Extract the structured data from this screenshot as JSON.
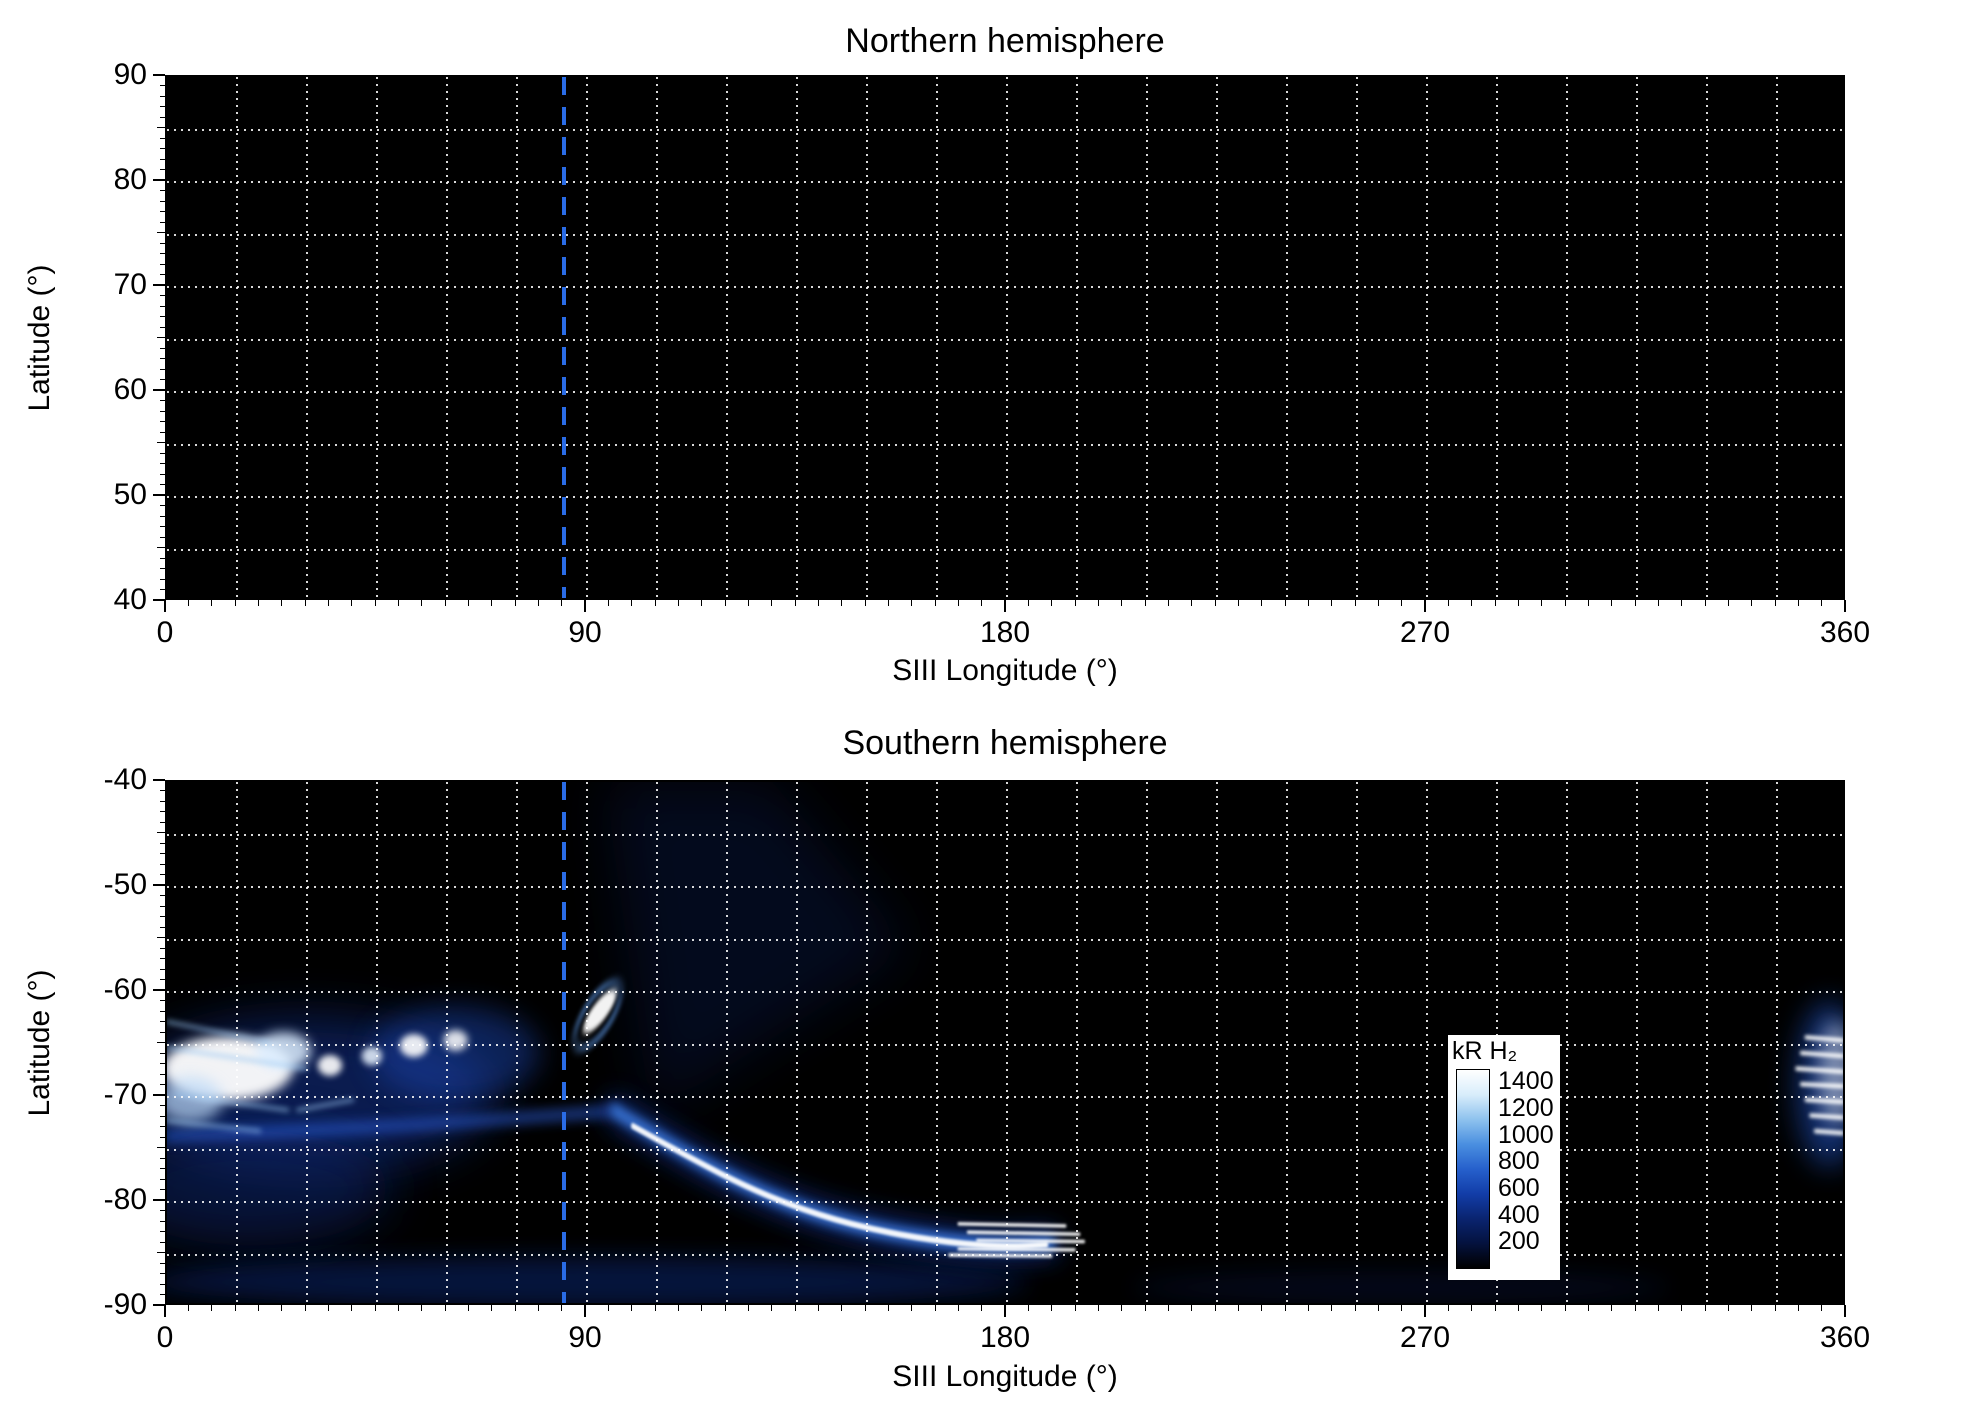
{
  "chart_data": [
    {
      "type": "heatmap",
      "title": "Northern hemisphere",
      "xlabel": "SIII Longitude (°)",
      "ylabel": "Latitude (°)",
      "xlim": [
        0,
        360
      ],
      "ylim": [
        40,
        90
      ],
      "xticks": [
        0,
        90,
        180,
        270,
        360
      ],
      "yticks": [
        90,
        80,
        70,
        60,
        50,
        40
      ],
      "minor_ticks": {
        "x_minor_step": 5,
        "y_minor_step": 1,
        "y_medium_step": 5
      },
      "grid": {
        "x_step": 15,
        "y_step": 5,
        "style": "dotted",
        "color": "#ffffff"
      },
      "background": "#000000",
      "reference_line": {
        "orientation": "vertical",
        "x": 85,
        "style": "dashed",
        "color": "#2a6ce6",
        "name": "CML marker"
      },
      "emission_features": [],
      "note": "no auroral emission visible; entirely black panel with dotted grid"
    },
    {
      "type": "heatmap",
      "title": "Southern hemisphere",
      "xlabel": "SIII Longitude (°)",
      "ylabel": "Latitude (°)",
      "xlim": [
        0,
        360
      ],
      "ylim": [
        -90,
        -40
      ],
      "xticks": [
        0,
        90,
        180,
        270,
        360
      ],
      "yticks": [
        -40,
        -50,
        -60,
        -70,
        -80,
        -90
      ],
      "minor_ticks": {
        "x_minor_step": 5,
        "y_minor_step": 1,
        "y_medium_step": 5
      },
      "grid": {
        "x_step": 15,
        "y_step": 5,
        "style": "dotted",
        "color": "#ffffff"
      },
      "background": "#000000",
      "reference_line": {
        "orientation": "vertical",
        "x": 85,
        "style": "dashed",
        "color": "#2a6ce6",
        "name": "CML marker"
      },
      "colorbar": {
        "label": "kR H₂",
        "values": [
          1400,
          1200,
          1000,
          800,
          600,
          400,
          200
        ],
        "range": [
          0,
          1500
        ],
        "colors": [
          "#000000",
          "#04123e",
          "#0a2470",
          "#123da8",
          "#2660cc",
          "#4a8fe0",
          "#8ec2ee",
          "#d8edfb",
          "#ffffff"
        ]
      },
      "emission_features": [
        {
          "kind": "ellipse",
          "lon": 30,
          "lat": -70,
          "rlon": 40,
          "rlat": 7.5,
          "fill": "#16379e",
          "opacity": 0.5,
          "blur": 5,
          "desc": "diffuse emission around dawn-side oval"
        },
        {
          "kind": "ellipse",
          "lon": 18,
          "lat": -79,
          "rlon": 30,
          "rlat": 5.5,
          "fill": "#0c2570",
          "opacity": 0.5,
          "blur": 5,
          "desc": "faint polar emission lower left"
        },
        {
          "kind": "ellipse",
          "lon": 62,
          "lat": -66,
          "rlon": 18,
          "rlat": 4.5,
          "fill": "#1c4ab8",
          "opacity": 0.45,
          "blur": 3
        },
        {
          "kind": "ellipse",
          "lon": 90,
          "lat": -88,
          "rlon": 95,
          "rlat": 2.4,
          "fill": "#0d2d85",
          "opacity": 0.45,
          "blur": 2.5,
          "desc": "faint band near -88 latitude"
        },
        {
          "kind": "ellipse",
          "lon": 265,
          "lat": -88.5,
          "rlon": 58,
          "rlat": 1.6,
          "fill": "#0a2266",
          "opacity": 0.25,
          "blur": 2.5
        },
        {
          "kind": "ellipse",
          "lon": 357,
          "lat": -69,
          "rlon": 7,
          "rlat": 8,
          "fill": "#2456cc",
          "opacity": 0.55,
          "blur": 3,
          "desc": "wrap-around of main emission at 360°"
        },
        {
          "kind": "polygon",
          "points": [
            [
              94,
              -40
            ],
            [
              130,
              -40
            ],
            [
              160,
              -56
            ],
            [
              104,
              -72
            ]
          ],
          "fill": "#0d2060",
          "opacity": 0.3,
          "blur": 6,
          "desc": "very faint wedge of background emission"
        },
        {
          "kind": "path",
          "points": [
            [
              0,
              -74
            ],
            [
              45,
              -73.2
            ],
            [
              96,
              -71.6
            ]
          ],
          "stroke": "#2a5ad0",
          "width": 1.3,
          "opacity": 0.55,
          "blur": 1.2,
          "desc": "faint arc segment 0-95°"
        },
        {
          "kind": "path",
          "points": [
            [
              96,
              -71.5
            ],
            [
              108,
              -74.8
            ],
            [
              122,
              -78.3
            ],
            [
              138,
              -81.3
            ],
            [
              152,
              -83
            ],
            [
              166,
              -84
            ],
            [
              178,
              -84.5
            ],
            [
              190,
              -84.3
            ]
          ],
          "stroke": "#16379e",
          "width": 3.2,
          "opacity": 0.6,
          "blur": 2.5,
          "desc": "main arc outer glow"
        },
        {
          "kind": "path",
          "points": [
            [
              96,
              -71.5
            ],
            [
              108,
              -74.8
            ],
            [
              122,
              -78.3
            ],
            [
              138,
              -81.3
            ],
            [
              152,
              -83
            ],
            [
              166,
              -84
            ],
            [
              178,
              -84.5
            ],
            [
              190,
              -84.3
            ]
          ],
          "stroke": "#3a7ae0",
          "width": 1.5,
          "opacity": 0.85,
          "blur": 1,
          "desc": "main arc inner glow"
        },
        {
          "kind": "path",
          "points": [
            [
              100,
              -73
            ],
            [
              112,
              -76
            ],
            [
              126,
              -79.2
            ],
            [
              140,
              -81.6
            ],
            [
              154,
              -83.2
            ],
            [
              168,
              -84.2
            ],
            [
              180,
              -84.6
            ],
            [
              189,
              -84.4
            ]
          ],
          "stroke": "#ffffff",
          "width": 0.6,
          "opacity": 0.95,
          "blur": 0.3,
          "desc": "main auroral arc bright core 100-190°"
        },
        {
          "kind": "ellipse",
          "lon": 13,
          "lat": -67.5,
          "rlon": 14,
          "rlat": 3.1,
          "fill": "#ffffff",
          "opacity": 0.95,
          "blur": 1.2,
          "desc": "bright saturated patch 0-30° at -67°"
        },
        {
          "kind": "ellipse",
          "lon": 25,
          "lat": -65.8,
          "rlon": 6,
          "rlat": 1.8,
          "fill": "#dceeff",
          "opacity": 0.85,
          "blur": 1.2
        },
        {
          "kind": "ellipse",
          "lon": 5,
          "lat": -70.5,
          "rlon": 7,
          "rlat": 2.2,
          "fill": "#bcd9f7",
          "opacity": 0.7,
          "blur": 1.5
        },
        {
          "kind": "ellipse",
          "lon": 35,
          "lat": -67.2,
          "rlon": 2.6,
          "rlat": 1,
          "fill": "#ffffff",
          "opacity": 0.9,
          "blur": 0.7,
          "desc": "bright spot"
        },
        {
          "kind": "ellipse",
          "lon": 44,
          "lat": -66.3,
          "rlon": 2.2,
          "rlat": 0.9,
          "fill": "#eaf4ff",
          "opacity": 0.85,
          "blur": 0.7,
          "desc": "bright spot"
        },
        {
          "kind": "ellipse",
          "lon": 53,
          "lat": -65.3,
          "rlon": 3,
          "rlat": 1.1,
          "fill": "#ffffff",
          "opacity": 0.9,
          "blur": 0.7,
          "desc": "bright spot"
        },
        {
          "kind": "ellipse",
          "lon": 62,
          "lat": -64.8,
          "rlon": 2.6,
          "rlat": 1,
          "fill": "#ffffff",
          "opacity": 0.85,
          "blur": 0.8,
          "desc": "bright spot"
        },
        {
          "kind": "ellipse",
          "lon": 93,
          "lat": -62,
          "rlon": 4,
          "rlat": 1.1,
          "fill": "#ffffff",
          "opacity": 0.95,
          "blur": 0.5,
          "rotate": -28,
          "desc": "isolated bright oval near 93°, -62°"
        },
        {
          "kind": "ring",
          "lon": 92.5,
          "lat": -62.4,
          "rlon": 5.5,
          "rlat": 2,
          "stroke": "#5e9ae8",
          "width": 0.5,
          "opacity": 0.8,
          "blur": 0.7,
          "rotate": -28
        },
        {
          "kind": "streaks",
          "stroke": "#ffffff",
          "width": 0.35,
          "opacity": 0.9,
          "blur": 0.3,
          "desc": "striated end of arc near 180-195°",
          "lines": [
            [
              [
                170,
                -82.4
              ],
              [
                193,
                -82.6
              ]
            ],
            [
              [
                172,
                -83.2
              ],
              [
                196,
                -83.4
              ]
            ],
            [
              [
                174,
                -84
              ],
              [
                197,
                -84.1
              ]
            ],
            [
              [
                170,
                -84.8
              ],
              [
                195,
                -84.9
              ]
            ],
            [
              [
                168,
                -85.4
              ],
              [
                190,
                -85.5
              ]
            ]
          ]
        },
        {
          "kind": "streaks",
          "stroke": "#ffffff",
          "width": 0.45,
          "opacity": 0.9,
          "blur": 0.4,
          "desc": "bright streaks at right edge 350-360°",
          "lines": [
            [
              [
                352,
                -64.5
              ],
              [
                360,
                -64.8
              ]
            ],
            [
              [
                351,
                -66
              ],
              [
                360,
                -66.3
              ]
            ],
            [
              [
                350,
                -67.5
              ],
              [
                360,
                -67.8
              ]
            ],
            [
              [
                351,
                -69
              ],
              [
                360,
                -69.2
              ]
            ],
            [
              [
                352,
                -70.5
              ],
              [
                360,
                -70.7
              ]
            ],
            [
              [
                353,
                -72
              ],
              [
                360,
                -72.2
              ]
            ],
            [
              [
                354,
                -73.5
              ],
              [
                360,
                -73.7
              ]
            ]
          ]
        },
        {
          "kind": "ellipse",
          "lon": 358.5,
          "lat": -68,
          "rlon": 3.5,
          "rlat": 5,
          "fill": "#ffffff",
          "opacity": 0.45,
          "blur": 2
        },
        {
          "kind": "streaks",
          "stroke": "#9cc8f2",
          "width": 0.4,
          "opacity": 0.6,
          "blur": 0.6,
          "desc": "streaky texture in left bright region",
          "lines": [
            [
              [
                0,
                -63
              ],
              [
                22,
                -65
              ]
            ],
            [
              [
                0,
                -65.5
              ],
              [
                30,
                -67.5
              ]
            ],
            [
              [
                2,
                -70
              ],
              [
                26,
                -71.5
              ]
            ],
            [
              [
                0,
                -72.5
              ],
              [
                20,
                -73.5
              ]
            ],
            [
              [
                28,
                -71.5
              ],
              [
                40,
                -70.5
              ]
            ]
          ]
        }
      ]
    }
  ]
}
